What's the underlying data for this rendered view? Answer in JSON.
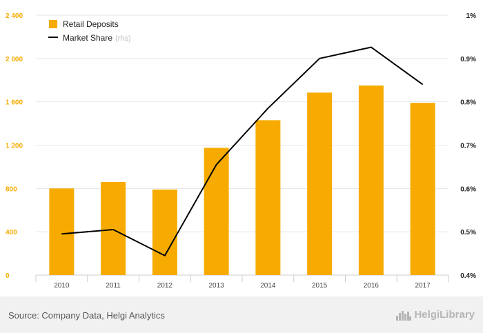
{
  "chart_data": {
    "type": "bar+line",
    "categories": [
      "2010",
      "2011",
      "2012",
      "2013",
      "2014",
      "2015",
      "2016",
      "2017"
    ],
    "series": [
      {
        "name": "Retail Deposits",
        "type": "bar",
        "axis": "left",
        "values": [
          800,
          860,
          790,
          1175,
          1430,
          1685,
          1750,
          1590
        ]
      },
      {
        "name": "Market Share",
        "axis_note": "(rhs)",
        "type": "line",
        "axis": "right",
        "values": [
          0.495,
          0.505,
          0.445,
          0.655,
          0.785,
          0.9,
          0.926,
          0.84
        ]
      }
    ],
    "left_axis": {
      "ylim": [
        0,
        2400
      ],
      "ticks": [
        "0",
        "400",
        "800",
        "1 200",
        "1 600",
        "2 000",
        "2 400"
      ]
    },
    "right_axis": {
      "ylim": [
        0.4,
        1.0
      ],
      "ticks": [
        "0.4%",
        "0.5%",
        "0.6%",
        "0.7%",
        "0.8%",
        "0.9%",
        "1%"
      ]
    },
    "legend": {
      "position": "top-left"
    },
    "grid": "horizontal"
  },
  "colors": {
    "bar": "#F7AB00",
    "line": "#000000",
    "axis_left": "#F7AB00",
    "grid": "#e6e6e6"
  },
  "footer": {
    "source": "Source: Company Data, Helgi Analytics",
    "logo": "HelgiLibrary",
    "logo_icon": "city-skyline-icon"
  }
}
